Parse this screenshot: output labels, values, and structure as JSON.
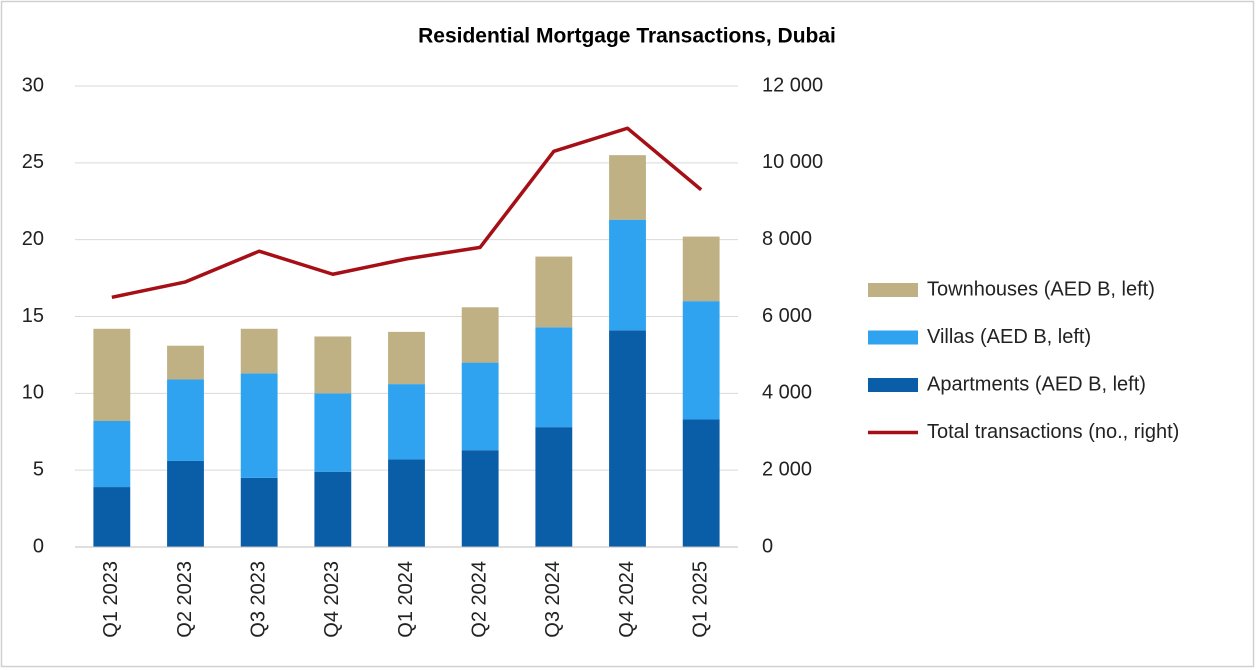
{
  "chart_data": {
    "type": "bar",
    "title": "Residential Mortgage Transactions, Dubai",
    "categories": [
      "Q1 2023",
      "Q2 2023",
      "Q3 2023",
      "Q4 2023",
      "Q1 2024",
      "Q2 2024",
      "Q3 2024",
      "Q4 2024",
      "Q1 2025"
    ],
    "stacked": true,
    "series": [
      {
        "name": "Apartments (AED B, left)",
        "color": "#0a5ea8",
        "type": "bar",
        "values": [
          3.9,
          5.6,
          4.5,
          4.9,
          5.7,
          6.3,
          7.8,
          14.1,
          8.3
        ]
      },
      {
        "name": "Villas (AED B, left)",
        "color": "#2fa3f0",
        "type": "bar",
        "values": [
          4.3,
          5.3,
          6.8,
          5.1,
          4.9,
          5.7,
          6.5,
          7.2,
          7.7
        ]
      },
      {
        "name": "Townhouses (AED B, left)",
        "color": "#bfb183",
        "type": "bar",
        "values": [
          6.0,
          2.2,
          2.9,
          3.7,
          3.4,
          3.6,
          4.6,
          4.2,
          4.2
        ]
      },
      {
        "name": "Total transactions (no., right)",
        "color": "#a50f15",
        "type": "line",
        "axis": "y2",
        "values": [
          6500,
          6900,
          7700,
          7100,
          7500,
          7800,
          10300,
          10900,
          9300
        ]
      }
    ],
    "ylim": [
      0,
      30
    ],
    "yticks": [
      0,
      5,
      10,
      15,
      20,
      25,
      30
    ],
    "y2lim": [
      0,
      12000
    ],
    "y2ticks": [
      0,
      {
        "value": 2000,
        "label": "2 000"
      },
      {
        "value": 4000,
        "label": "4 000"
      },
      {
        "value": 6000,
        "label": "6 000"
      },
      {
        "value": 8000,
        "label": "8 000"
      },
      {
        "value": 10000,
        "label": "10 000"
      },
      {
        "value": 12000,
        "label": "12 000"
      }
    ],
    "grid": true,
    "legend": "right"
  }
}
